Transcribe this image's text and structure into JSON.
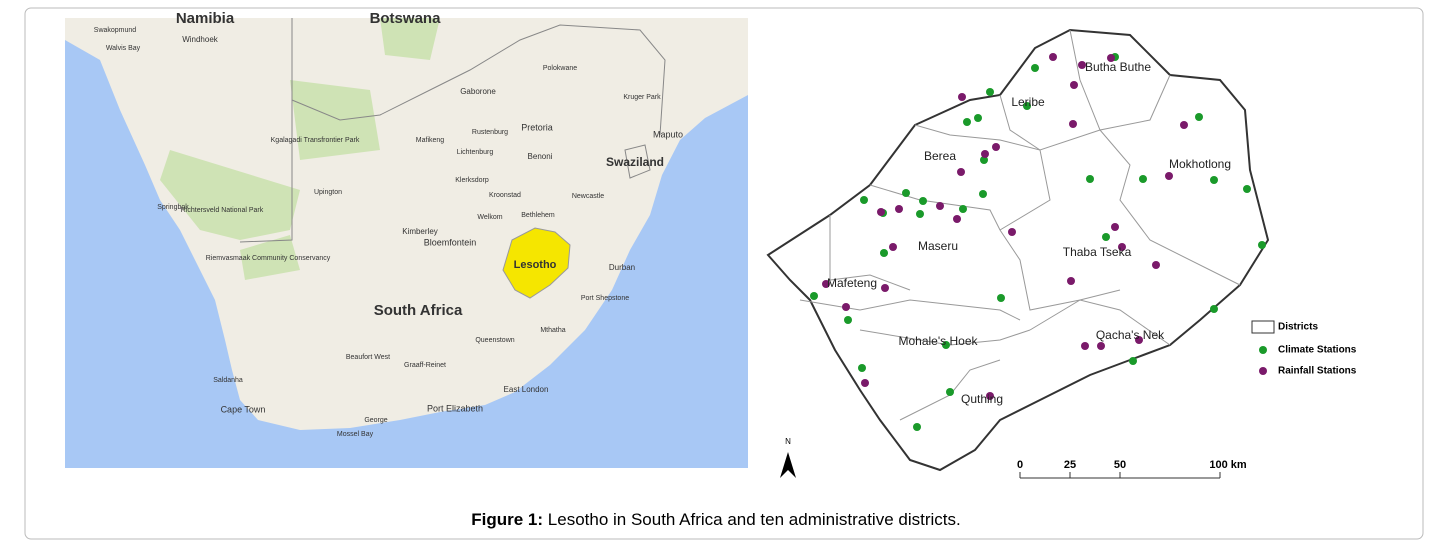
{
  "left_map": {
    "labels": [
      "Namibia",
      "Botswana",
      "Swakopmund",
      "Walvis Bay",
      "Windhoek",
      "Gaborone",
      "Mafikeng",
      "Rustenburg",
      "Pretoria",
      "Polokwane",
      "Kruger Park",
      "Maputo",
      "Swaziland",
      "Benoni",
      "Lichtenburg",
      "Klerksdorp",
      "Kroonstad",
      "Welkom",
      "Bethlehem",
      "Newcastle",
      "Kimberley",
      "Bloemfontein",
      "Lesotho",
      "Durban",
      "Port Shepstone",
      "Mthatha",
      "Queenstown",
      "East London",
      "Port Elizabeth",
      "Graaff-Reinet",
      "Beaufort West",
      "South Africa",
      "Upington",
      "Springbok",
      "Saldanha",
      "Cape Town",
      "George",
      "Mossel Bay",
      "Kgalagadi Transfrontier Park",
      "Richtersveld National Park",
      "Riemvasmaak Community Conservancy"
    ]
  },
  "right_map": {
    "districts": [
      "Butha Buthe",
      "Leribe",
      "Berea",
      "Mokhotlong",
      "Maseru",
      "Thaba Tseka",
      "Mafeteng",
      "Mohale's Hoek",
      "Qacha's Nek",
      "Quthing"
    ],
    "north": "N",
    "legend": [
      "Districts",
      "Climate Stations",
      "Rainfall Stations"
    ],
    "scale": [
      "0",
      "25",
      "50",
      "100 km"
    ]
  },
  "caption": {
    "label": "Figure 1:",
    "text": "Lesotho in South Africa and ten administrative districts."
  }
}
